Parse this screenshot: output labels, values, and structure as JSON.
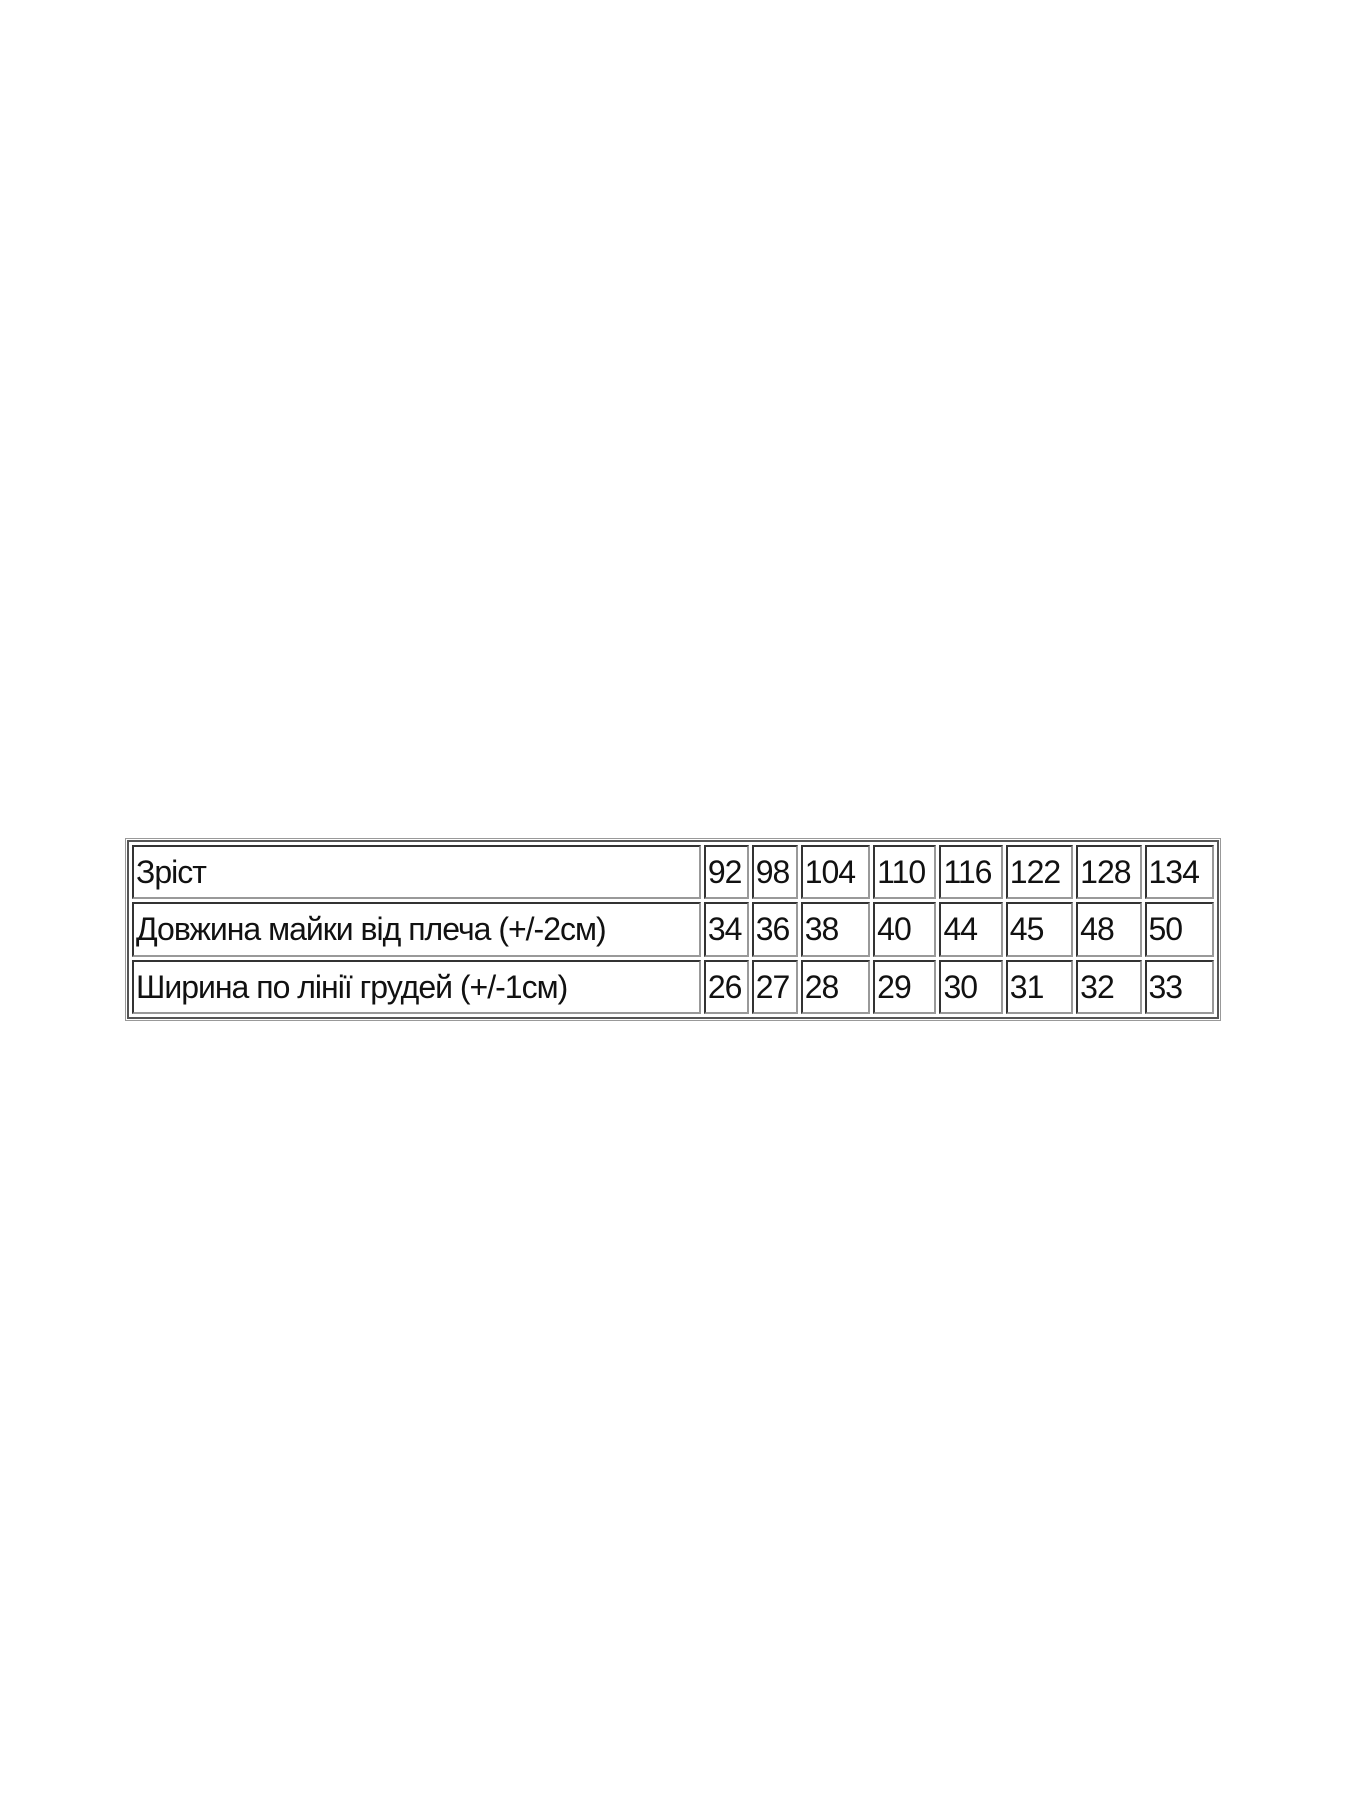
{
  "size_table": {
    "rows": [
      {
        "label": "Зріст",
        "values": [
          "92",
          "98",
          "104",
          "110",
          "116",
          "122",
          "128",
          "134"
        ]
      },
      {
        "label": "Довжина майки від плеча (+/-2см)",
        "values": [
          "34",
          "36",
          "38",
          "40",
          "44",
          "45",
          "48",
          "50"
        ]
      },
      {
        "label": "Ширина по лінії грудей (+/-1см)",
        "values": [
          "26",
          "27",
          "28",
          "29",
          "30",
          "31",
          "32",
          "33"
        ]
      }
    ]
  }
}
